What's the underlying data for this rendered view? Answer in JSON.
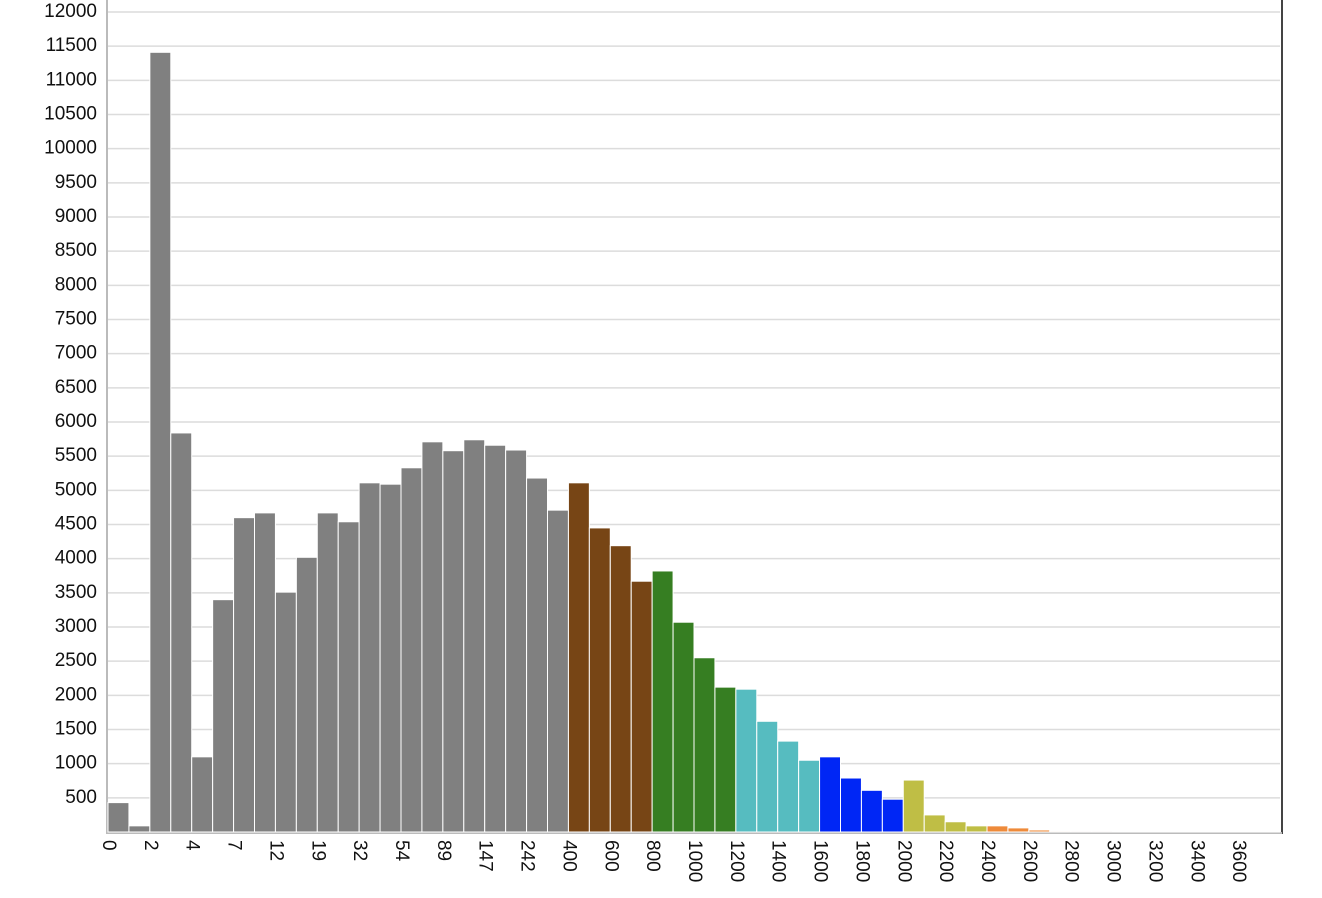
{
  "chart_data": {
    "type": "bar",
    "categories": [
      "0",
      null,
      "2",
      null,
      "4",
      null,
      "7",
      null,
      "12",
      null,
      "19",
      null,
      "32",
      null,
      "54",
      null,
      "89",
      null,
      "147",
      null,
      "242",
      null,
      "400",
      null,
      "600",
      null,
      "800",
      null,
      "1000",
      null,
      "1200",
      null,
      "1400",
      null,
      "1600",
      null,
      "1800",
      null,
      "2000",
      null,
      "2200",
      null,
      "2400",
      null,
      "2600",
      null,
      "2800",
      null,
      "3000",
      null,
      "3200",
      null,
      "3400",
      null,
      "3600",
      null
    ],
    "values": [
      430,
      90,
      11410,
      5840,
      1100,
      3400,
      4600,
      4670,
      3510,
      4020,
      4670,
      4540,
      5110,
      5090,
      5330,
      5710,
      5580,
      5740,
      5660,
      5590,
      5180,
      4710,
      5110,
      4450,
      4190,
      3670,
      3820,
      3070,
      2550,
      2120,
      2090,
      1620,
      1330,
      1050,
      1100,
      790,
      610,
      480,
      760,
      250,
      150,
      90,
      90,
      60,
      30,
      15,
      15,
      15,
      5,
      5,
      5,
      5,
      5,
      5,
      5,
      5
    ],
    "colors": [
      "#808080",
      "#808080",
      "#808080",
      "#808080",
      "#808080",
      "#808080",
      "#808080",
      "#808080",
      "#808080",
      "#808080",
      "#808080",
      "#808080",
      "#808080",
      "#808080",
      "#808080",
      "#808080",
      "#808080",
      "#808080",
      "#808080",
      "#808080",
      "#808080",
      "#808080",
      "#774515",
      "#774515",
      "#774515",
      "#774515",
      "#367e22",
      "#367e22",
      "#367e22",
      "#367e22",
      "#56bcc0",
      "#56bcc0",
      "#56bcc0",
      "#56bcc0",
      "#0026f5",
      "#0026f5",
      "#0026f5",
      "#0026f5",
      "#bfbe45",
      "#bfbe45",
      "#bfbe45",
      "#bfbe45",
      "#ee8a3a",
      "#ee8a3a",
      "#ee8a3a",
      "#ee8a3a",
      "#e89a9a",
      "#e89a9a",
      "#e89a9a",
      "#e89a9a",
      "#c8c8c8",
      "#c8c8c8",
      "#c8c8c8",
      "#c8c8c8",
      "#c8c8c8",
      "#c8c8c8"
    ],
    "ylim": [
      0,
      12000
    ],
    "yticks": [
      500,
      1000,
      1500,
      2000,
      2500,
      3000,
      3500,
      4000,
      4500,
      5000,
      5500,
      6000,
      6500,
      7000,
      7500,
      8000,
      8500,
      9000,
      9500,
      10000,
      10500,
      11000,
      11500,
      12000
    ],
    "grid": true
  }
}
